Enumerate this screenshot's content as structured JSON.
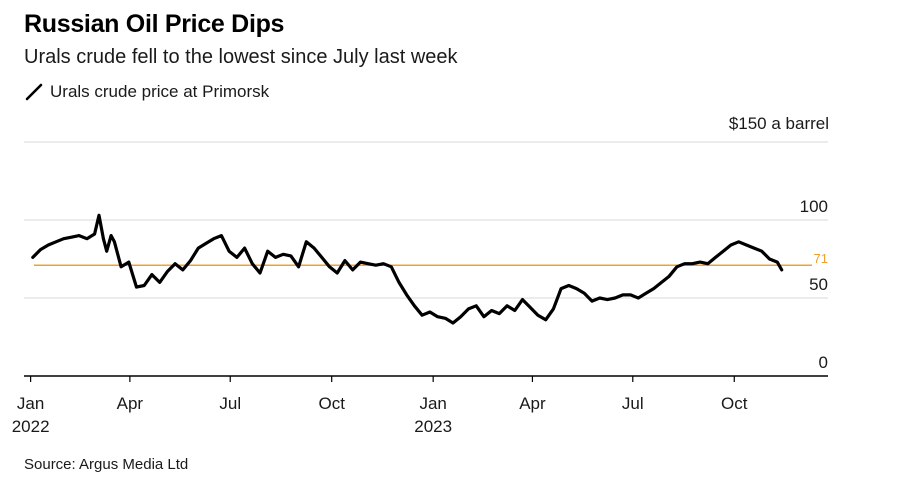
{
  "header": {
    "title": "Russian Oil Price Dips",
    "subtitle": "Urals crude fell to the lowest since July last week"
  },
  "legend": {
    "label": "Urals crude price at Primorsk"
  },
  "source": "Source: Argus Media Ltd",
  "colors": {
    "line": "#000000",
    "reference": "#f0a030",
    "grid": "#d9d9d9",
    "axis": "#000000"
  },
  "chart_data": {
    "type": "line",
    "title": "Russian Oil Price Dips",
    "subtitle": "Urals crude fell to the lowest since July last week",
    "series": [
      {
        "name": "Urals crude price at Primorsk",
        "x": [
          "2022-01-03",
          "2022-01-10",
          "2022-01-17",
          "2022-01-24",
          "2022-01-31",
          "2022-02-07",
          "2022-02-14",
          "2022-02-21",
          "2022-02-28",
          "2022-03-04",
          "2022-03-08",
          "2022-03-11",
          "2022-03-15",
          "2022-03-18",
          "2022-03-24",
          "2022-03-31",
          "2022-04-07",
          "2022-04-14",
          "2022-04-21",
          "2022-04-28",
          "2022-05-05",
          "2022-05-12",
          "2022-05-19",
          "2022-05-26",
          "2022-06-02",
          "2022-06-09",
          "2022-06-16",
          "2022-06-23",
          "2022-06-30",
          "2022-07-07",
          "2022-07-14",
          "2022-07-21",
          "2022-07-28",
          "2022-08-04",
          "2022-08-11",
          "2022-08-18",
          "2022-08-25",
          "2022-09-01",
          "2022-09-08",
          "2022-09-15",
          "2022-09-22",
          "2022-09-29",
          "2022-10-06",
          "2022-10-13",
          "2022-10-20",
          "2022-10-27",
          "2022-11-03",
          "2022-11-10",
          "2022-11-17",
          "2022-11-24",
          "2022-12-01",
          "2022-12-08",
          "2022-12-15",
          "2022-12-22",
          "2022-12-29",
          "2023-01-05",
          "2023-01-12",
          "2023-01-19",
          "2023-01-26",
          "2023-02-02",
          "2023-02-09",
          "2023-02-16",
          "2023-02-23",
          "2023-03-02",
          "2023-03-09",
          "2023-03-16",
          "2023-03-23",
          "2023-03-30",
          "2023-04-06",
          "2023-04-13",
          "2023-04-20",
          "2023-04-27",
          "2023-05-04",
          "2023-05-11",
          "2023-05-18",
          "2023-05-25",
          "2023-06-01",
          "2023-06-08",
          "2023-06-15",
          "2023-06-22",
          "2023-06-29",
          "2023-07-06",
          "2023-07-13",
          "2023-07-20",
          "2023-07-27",
          "2023-08-03",
          "2023-08-10",
          "2023-08-17",
          "2023-08-24",
          "2023-08-31",
          "2023-09-07",
          "2023-09-14",
          "2023-09-21",
          "2023-09-28",
          "2023-10-05",
          "2023-10-12",
          "2023-10-19",
          "2023-10-26",
          "2023-11-02",
          "2023-11-09",
          "2023-11-13"
        ],
        "values": [
          76,
          81,
          84,
          86,
          88,
          89,
          90,
          88,
          91,
          103,
          88,
          80,
          90,
          86,
          70,
          73,
          57,
          58,
          65,
          60,
          67,
          72,
          68,
          74,
          82,
          85,
          88,
          90,
          80,
          76,
          82,
          72,
          66,
          80,
          76,
          78,
          77,
          70,
          86,
          82,
          76,
          70,
          66,
          74,
          68,
          73,
          72,
          71,
          72,
          70,
          60,
          52,
          45,
          39,
          41,
          38,
          37,
          34,
          38,
          43,
          45,
          38,
          42,
          40,
          45,
          42,
          49,
          44,
          39,
          36,
          43,
          56,
          58,
          56,
          53,
          48,
          50,
          49,
          50,
          52,
          52,
          50,
          53,
          56,
          60,
          64,
          70,
          72,
          72,
          73,
          72,
          76,
          80,
          84,
          86,
          84,
          82,
          80,
          75,
          73,
          68
        ]
      }
    ],
    "reference_line": {
      "value": 71,
      "label": "71"
    },
    "ylim": [
      0,
      150
    ],
    "y_ticks": [
      {
        "value": 0,
        "label": "0"
      },
      {
        "value": 50,
        "label": "50"
      },
      {
        "value": 100,
        "label": "100"
      },
      {
        "value": 150,
        "label": "$150 a barrel"
      }
    ],
    "x_range": [
      "2021-12-26",
      "2023-12-25"
    ],
    "x_ticks": [
      {
        "date": "2022-01-01",
        "label": "Jan",
        "sublabel": "2022"
      },
      {
        "date": "2022-04-01",
        "label": "Apr",
        "sublabel": ""
      },
      {
        "date": "2022-07-01",
        "label": "Jul",
        "sublabel": ""
      },
      {
        "date": "2022-10-01",
        "label": "Oct",
        "sublabel": ""
      },
      {
        "date": "2023-01-01",
        "label": "Jan",
        "sublabel": "2023"
      },
      {
        "date": "2023-04-01",
        "label": "Apr",
        "sublabel": ""
      },
      {
        "date": "2023-07-01",
        "label": "Jul",
        "sublabel": ""
      },
      {
        "date": "2023-10-01",
        "label": "Oct",
        "sublabel": ""
      }
    ],
    "grid": true,
    "legend_position": "top-left"
  }
}
